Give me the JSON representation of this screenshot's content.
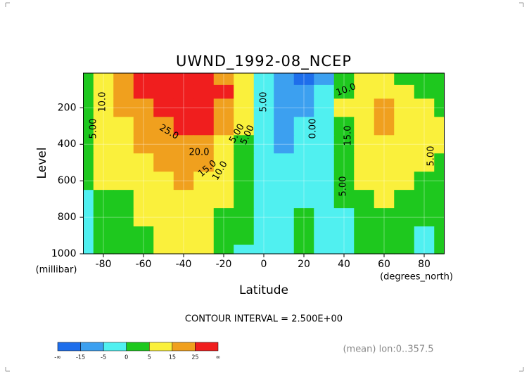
{
  "chart_data": {
    "type": "contour",
    "title": "UWND_1992-08_NCEP",
    "x_label": "Latitude",
    "x_unit": "(degrees_north)",
    "y_label": "Level",
    "y_unit": "(millibar)",
    "x": [
      -90,
      -80,
      -70,
      -60,
      -50,
      -40,
      -30,
      -20,
      -10,
      0,
      10,
      20,
      30,
      40,
      50,
      60,
      70,
      80,
      90
    ],
    "levels": [
      50,
      100,
      200,
      300,
      400,
      500,
      600,
      700,
      800,
      900,
      1000
    ],
    "z": [
      [
        0,
        8,
        20,
        30,
        32,
        30,
        26,
        18,
        6,
        -5,
        -14,
        -18,
        -6,
        2,
        5,
        8,
        4,
        1,
        0
      ],
      [
        2,
        10,
        22,
        28,
        30,
        28,
        30,
        26,
        10,
        -4,
        -10,
        -12,
        -3,
        4,
        10,
        12,
        6,
        3,
        2
      ],
      [
        2,
        9,
        15,
        22,
        26,
        27,
        32,
        24,
        8,
        -3,
        -7,
        -6,
        -1,
        5,
        14,
        18,
        10,
        6,
        4
      ],
      [
        1,
        8,
        12,
        18,
        22,
        26,
        28,
        20,
        6,
        -2,
        -6,
        -5,
        -1,
        4,
        12,
        15,
        11,
        7,
        5
      ],
      [
        1,
        7,
        11,
        15,
        19,
        22,
        20,
        14,
        4,
        -2,
        -6,
        -4,
        -1,
        3,
        9,
        12,
        9,
        6,
        5
      ],
      [
        0,
        6,
        9,
        12,
        16,
        18,
        16,
        10,
        3,
        -2,
        -5,
        -3,
        -1,
        2,
        7,
        10,
        7,
        5,
        4
      ],
      [
        0,
        5,
        6,
        9,
        13,
        15,
        13,
        8,
        2,
        -2,
        -4,
        -3,
        -1,
        1,
        5,
        8,
        5,
        4,
        3
      ],
      [
        -1,
        3,
        4,
        7,
        10,
        12,
        10,
        6,
        1,
        -2,
        -4,
        -2,
        -1,
        0,
        4,
        6,
        3,
        2,
        1
      ],
      [
        -1,
        2,
        3,
        5,
        8,
        10,
        8,
        4,
        0,
        -2,
        -3,
        1,
        -2,
        -1,
        3,
        4,
        2,
        0,
        1
      ],
      [
        -1,
        1,
        2,
        4,
        7,
        8,
        7,
        3,
        0,
        -2,
        -4,
        1,
        -3,
        -2,
        2,
        3,
        1,
        -1,
        1
      ],
      [
        -1,
        0,
        2,
        3,
        6,
        7,
        5,
        2,
        -1,
        -3,
        -4,
        1,
        -4,
        -3,
        1,
        2,
        0,
        -1,
        0
      ]
    ],
    "xlim": [
      -90,
      90
    ],
    "ylim": [
      1000,
      10
    ],
    "xticks": [
      -80,
      -60,
      -40,
      -20,
      0,
      20,
      40,
      60,
      80
    ],
    "yticks": [
      200,
      400,
      600,
      800,
      1000
    ],
    "grid": true,
    "contour_labels": [
      "10.0",
      "5.00",
      "25.0",
      "20.0",
      "15.0",
      "10.0",
      "5.00",
      "5.00",
      "5.00",
      "0.00",
      "10.0",
      "15.0",
      "5.00",
      "5.00"
    ],
    "contour_interval": "CONTOUR INTERVAL = 2.500E+00",
    "note": "(mean) lon:0..357.5",
    "colorbar": {
      "ticks": [
        "-∞",
        -15,
        -5,
        0,
        5,
        15,
        25,
        "∞"
      ],
      "colors": [
        "#1e6eeb",
        "#3ca0f0",
        "#50f0f0",
        "#1ec81e",
        "#faf03c",
        "#f0a01e",
        "#f01e1e"
      ]
    }
  }
}
